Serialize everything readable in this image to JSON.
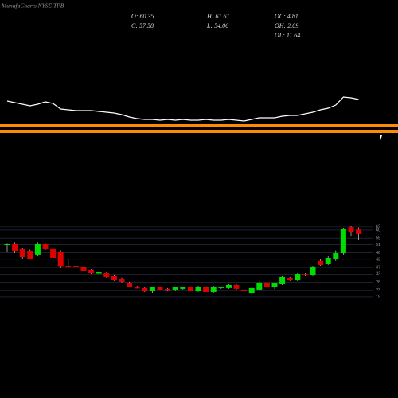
{
  "chart_data": [
    {
      "type": "candlestick",
      "title": "MunafaCharts NYSE TPB",
      "info": [
        "O: 60.35",
        "H: 61.61",
        "OC: 4.81",
        "C: 57.58",
        "L: 54.06",
        "OH: 2.09",
        "OL: 11.64"
      ],
      "open": [
        50.7,
        51.7,
        48.3,
        47.3,
        44.9,
        51.7,
        48.3,
        46.8,
        38,
        38,
        37,
        35.6,
        33.6,
        33.6,
        31.7,
        30.2,
        27.8,
        24.9,
        24.4,
        22.4,
        24.9,
        23.9,
        23.4,
        23.9,
        24.9,
        22.4,
        24.9,
        21.9,
        24.4,
        24.4,
        26.3,
        23.4,
        21.4,
        23.4,
        27.8,
        24.9,
        26.8,
        30.7,
        29.2,
        33.1,
        32.2,
        41,
        39,
        41.9,
        45.8,
        61.9,
        60.35
      ],
      "high": [
        52,
        52.5,
        49,
        48,
        52.5,
        52,
        49,
        47.5,
        42.5,
        38.5,
        37.5,
        36,
        34.5,
        34,
        32.2,
        30.8,
        28.3,
        25.8,
        24.9,
        24.9,
        25.3,
        24.4,
        25.3,
        25.3,
        25.3,
        25.8,
        25.3,
        25.8,
        25.3,
        26.8,
        26.8,
        23.9,
        24.9,
        28.8,
        28.3,
        27.8,
        31.7,
        31.2,
        33.6,
        33.6,
        38,
        42,
        44,
        47.5,
        61,
        62.5,
        61.61
      ],
      "low": [
        46.5,
        45.8,
        42.4,
        41.9,
        44,
        47.8,
        42.4,
        36.5,
        36.8,
        36.5,
        34.8,
        33.2,
        33,
        30.8,
        28.8,
        27.8,
        24.9,
        24.2,
        21.9,
        21.4,
        23.4,
        22.9,
        22.9,
        23.4,
        22.4,
        22,
        21.9,
        21.4,
        23.9,
        23.9,
        23.4,
        22.4,
        21,
        23,
        25.3,
        23.9,
        26.3,
        28.8,
        28.8,
        31.7,
        31.7,
        38,
        38.5,
        41,
        44.9,
        56,
        54.06
      ],
      "close": [
        51.7,
        47.3,
        43.4,
        42.4,
        51.7,
        48.3,
        42.9,
        37.8,
        37,
        37,
        35.1,
        33.6,
        34.1,
        31.2,
        29.2,
        28.3,
        25.3,
        24.4,
        22.4,
        24.9,
        23.4,
        23.4,
        24.9,
        24.9,
        22.4,
        24.9,
        21.9,
        25.3,
        25.3,
        26.3,
        23.9,
        22.4,
        24.4,
        27.8,
        25.3,
        27.3,
        31.2,
        29.2,
        33.1,
        32.2,
        37.5,
        38.5,
        42.9,
        45.8,
        60.5,
        58.5,
        57.58
      ],
      "up_color": "#00dd00",
      "down_color": "#e00000",
      "ylim": [
        18,
        63.4
      ],
      "yticks": [
        62,
        60,
        55,
        51,
        46,
        42,
        37,
        33,
        28,
        23,
        19
      ],
      "grid": true
    },
    {
      "type": "line",
      "color": "#ffffff",
      "values": [
        33,
        31,
        29,
        27,
        29,
        32,
        30,
        23,
        22,
        21,
        21,
        21,
        20,
        19,
        18,
        16,
        13,
        11,
        10,
        10,
        9,
        10,
        9,
        10,
        9,
        9,
        10,
        9,
        9,
        10,
        9,
        8,
        10,
        12,
        12,
        12,
        14,
        15,
        15,
        17,
        19,
        22,
        24,
        28,
        38,
        37,
        35
      ],
      "ylim": [
        0,
        50
      ]
    }
  ]
}
